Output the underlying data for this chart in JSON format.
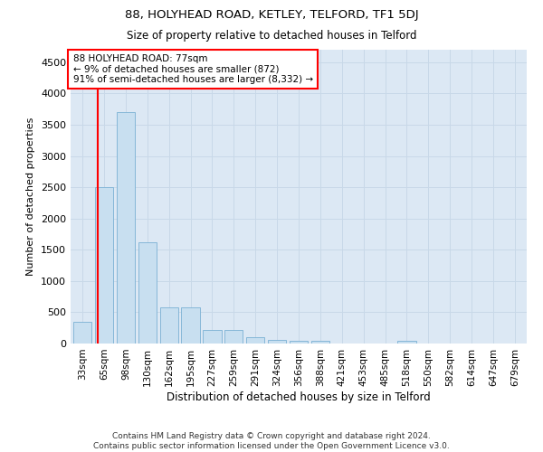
{
  "title": "88, HOLYHEAD ROAD, KETLEY, TELFORD, TF1 5DJ",
  "subtitle": "Size of property relative to detached houses in Telford",
  "xlabel": "Distribution of detached houses by size in Telford",
  "ylabel": "Number of detached properties",
  "categories": [
    "33sqm",
    "65sqm",
    "98sqm",
    "130sqm",
    "162sqm",
    "195sqm",
    "227sqm",
    "259sqm",
    "291sqm",
    "324sqm",
    "356sqm",
    "388sqm",
    "421sqm",
    "453sqm",
    "485sqm",
    "518sqm",
    "550sqm",
    "582sqm",
    "614sqm",
    "647sqm",
    "679sqm"
  ],
  "values": [
    350,
    2500,
    3700,
    1625,
    580,
    580,
    215,
    215,
    100,
    65,
    50,
    50,
    0,
    0,
    0,
    50,
    0,
    0,
    0,
    0,
    0
  ],
  "bar_color": "#c8dff0",
  "bar_edge_color": "#7ab0d4",
  "grid_color": "#c8d8e8",
  "annotation_box_text": "88 HOLYHEAD ROAD: 77sqm\n← 9% of detached houses are smaller (872)\n91% of semi-detached houses are larger (8,332) →",
  "vline_x_index": 0.72,
  "ylim": [
    0,
    4700
  ],
  "yticks": [
    0,
    500,
    1000,
    1500,
    2000,
    2500,
    3000,
    3500,
    4000,
    4500
  ],
  "footer": "Contains HM Land Registry data © Crown copyright and database right 2024.\nContains public sector information licensed under the Open Government Licence v3.0.",
  "bg_color": "#dce8f4",
  "title_fontsize": 9.5,
  "subtitle_fontsize": 8.5
}
